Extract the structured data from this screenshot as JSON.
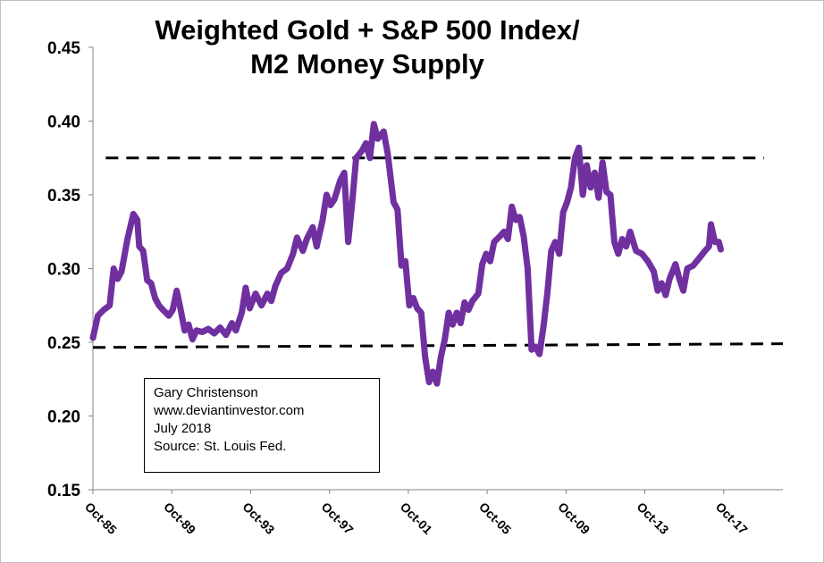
{
  "chart_data": {
    "type": "line",
    "title_lines": [
      "Weighted Gold + S&P 500 Index/",
      "M2 Money Supply"
    ],
    "xlabel": "",
    "ylabel": "",
    "ylim": [
      0.15,
      0.45
    ],
    "y_ticks": [
      "0.15",
      "0.20",
      "0.25",
      "0.30",
      "0.35",
      "0.40",
      "0.45"
    ],
    "x_ticks": [
      "Oct-85",
      "Oct-89",
      "Oct-93",
      "Oct-97",
      "Oct-01",
      "Oct-05",
      "Oct-09",
      "Oct-13",
      "Oct-17"
    ],
    "x_tick_years": [
      1985.75,
      1989.75,
      1993.75,
      1997.75,
      2001.75,
      2005.75,
      2009.75,
      2013.75,
      2017.75
    ],
    "xlim": [
      1985.75,
      2020.75
    ],
    "grid": false,
    "series": [
      {
        "color": "#7030A0",
        "x": [
          1985.75,
          1986.0,
          1986.3,
          1986.6,
          1986.8,
          1987.0,
          1987.2,
          1987.5,
          1987.8,
          1988.0,
          1988.1,
          1988.3,
          1988.5,
          1988.7,
          1988.9,
          1989.1,
          1989.3,
          1989.6,
          1989.8,
          1990.0,
          1990.2,
          1990.4,
          1990.6,
          1990.8,
          1991.0,
          1991.3,
          1991.6,
          1991.9,
          1992.2,
          1992.5,
          1992.8,
          1993.0,
          1993.3,
          1993.5,
          1993.7,
          1994.0,
          1994.3,
          1994.6,
          1994.8,
          1995.0,
          1995.3,
          1995.6,
          1995.9,
          1996.1,
          1996.4,
          1996.6,
          1996.9,
          1997.1,
          1997.4,
          1997.6,
          1997.8,
          1998.0,
          1998.3,
          1998.5,
          1998.7,
          1998.9,
          1999.1,
          1999.4,
          1999.6,
          1999.8,
          2000.0,
          2000.2,
          2000.5,
          2000.7,
          2001.0,
          2001.2,
          2001.4,
          2001.6,
          2001.8,
          2002.0,
          2002.2,
          2002.4,
          2002.6,
          2002.8,
          2003.0,
          2003.2,
          2003.4,
          2003.6,
          2003.8,
          2004.0,
          2004.2,
          2004.4,
          2004.6,
          2004.8,
          2005.0,
          2005.3,
          2005.5,
          2005.7,
          2005.9,
          2006.1,
          2006.4,
          2006.6,
          2006.8,
          2007.0,
          2007.2,
          2007.4,
          2007.6,
          2007.8,
          2008.0,
          2008.2,
          2008.4,
          2008.6,
          2008.8,
          2009.0,
          2009.2,
          2009.4,
          2009.6,
          2009.8,
          2010.0,
          2010.2,
          2010.4,
          2010.6,
          2010.8,
          2011.0,
          2011.2,
          2011.4,
          2011.6,
          2011.8,
          2012.0,
          2012.2,
          2012.4,
          2012.6,
          2012.8,
          2013.0,
          2013.3,
          2013.6,
          2013.9,
          2014.2,
          2014.4,
          2014.6,
          2014.8,
          2015.0,
          2015.3,
          2015.5,
          2015.7,
          2015.9,
          2016.2,
          2016.5,
          2016.8,
          2017.0,
          2017.1,
          2017.3,
          2017.5,
          2017.6
        ],
        "y": [
          0.253,
          0.268,
          0.272,
          0.275,
          0.3,
          0.293,
          0.298,
          0.32,
          0.337,
          0.333,
          0.315,
          0.312,
          0.292,
          0.29,
          0.28,
          0.275,
          0.272,
          0.268,
          0.272,
          0.285,
          0.272,
          0.258,
          0.262,
          0.252,
          0.258,
          0.257,
          0.259,
          0.256,
          0.26,
          0.255,
          0.263,
          0.258,
          0.27,
          0.287,
          0.273,
          0.283,
          0.275,
          0.283,
          0.278,
          0.288,
          0.297,
          0.3,
          0.31,
          0.321,
          0.312,
          0.32,
          0.328,
          0.315,
          0.333,
          0.35,
          0.343,
          0.347,
          0.36,
          0.365,
          0.318,
          0.345,
          0.375,
          0.38,
          0.385,
          0.375,
          0.398,
          0.388,
          0.393,
          0.378,
          0.345,
          0.34,
          0.302,
          0.305,
          0.275,
          0.28,
          0.273,
          0.27,
          0.24,
          0.223,
          0.23,
          0.222,
          0.24,
          0.252,
          0.27,
          0.262,
          0.27,
          0.263,
          0.277,
          0.272,
          0.278,
          0.283,
          0.303,
          0.31,
          0.305,
          0.318,
          0.322,
          0.325,
          0.32,
          0.342,
          0.333,
          0.335,
          0.322,
          0.3,
          0.245,
          0.247,
          0.242,
          0.26,
          0.283,
          0.312,
          0.318,
          0.31,
          0.338,
          0.345,
          0.355,
          0.375,
          0.382,
          0.35,
          0.37,
          0.355,
          0.365,
          0.348,
          0.372,
          0.352,
          0.35,
          0.318,
          0.31,
          0.32,
          0.315,
          0.325,
          0.312,
          0.31,
          0.305,
          0.298,
          0.285,
          0.29,
          0.282,
          0.293,
          0.303,
          0.293,
          0.285,
          0.3,
          0.302,
          0.307,
          0.312,
          0.315,
          0.33,
          0.318,
          0.318,
          0.313
        ]
      }
    ],
    "reference_lines": [
      {
        "style": "dashed",
        "color": "#000000",
        "x": [
          1986.4,
          2019.8
        ],
        "y": [
          0.375,
          0.375
        ]
      },
      {
        "style": "dashed",
        "color": "#000000",
        "x": [
          1985.75,
          2020.75
        ],
        "y": [
          0.2465,
          0.249
        ]
      }
    ],
    "annotation": [
      "Gary Christenson",
      "www.deviantinvestor.com",
      "July 2018",
      "Source: St. Louis Fed."
    ]
  }
}
